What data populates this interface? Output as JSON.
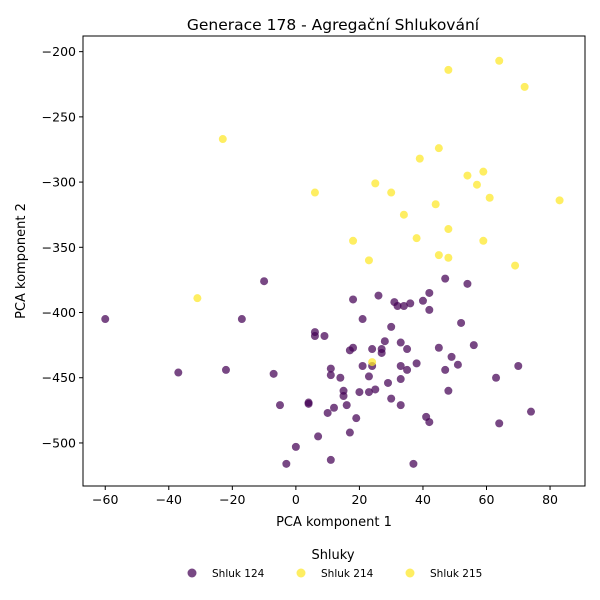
{
  "chart_data": {
    "type": "scatter",
    "title": "Generace 178 - Agregační Shlukování",
    "xlabel": "PCA komponent 1",
    "ylabel": "PCA komponent 2",
    "xlim": [
      -67,
      91
    ],
    "ylim": [
      -533,
      -188
    ],
    "xticks": [
      -60,
      -40,
      -20,
      0,
      20,
      40,
      60,
      80
    ],
    "yticks": [
      -200,
      -250,
      -300,
      -350,
      -400,
      -450,
      -500
    ],
    "grid": false,
    "legend": {
      "title": "Shluky",
      "placement": "bottom-center",
      "entries": [
        "Shluk 124",
        "Shluk 214",
        "Shluk 215"
      ]
    },
    "series": [
      {
        "name": "Shluk 124",
        "color": "#440154",
        "points": [
          [
            -60,
            -405
          ],
          [
            -37,
            -446
          ],
          [
            -22,
            -444
          ],
          [
            -17,
            -405
          ],
          [
            -10,
            -376
          ],
          [
            -7,
            -447
          ],
          [
            -5,
            -471
          ],
          [
            -3,
            -516
          ],
          [
            0,
            -503
          ],
          [
            4,
            -469
          ],
          [
            4,
            -470
          ],
          [
            6,
            -415
          ],
          [
            6,
            -418
          ],
          [
            7,
            -495
          ],
          [
            9,
            -418
          ],
          [
            10,
            -477
          ],
          [
            11,
            -513
          ],
          [
            11,
            -443
          ],
          [
            11,
            -448
          ],
          [
            12,
            -473
          ],
          [
            14,
            -450
          ],
          [
            15,
            -464
          ],
          [
            15,
            -460
          ],
          [
            16,
            -471
          ],
          [
            17,
            -492
          ],
          [
            17,
            -429
          ],
          [
            18,
            -390
          ],
          [
            18,
            -427
          ],
          [
            19,
            -481
          ],
          [
            20,
            -461
          ],
          [
            21,
            -441
          ],
          [
            21,
            -405
          ],
          [
            23,
            -461
          ],
          [
            23,
            -449
          ],
          [
            24,
            -428
          ],
          [
            24,
            -441
          ],
          [
            25,
            -459
          ],
          [
            26,
            -387
          ],
          [
            27,
            -428
          ],
          [
            27,
            -431
          ],
          [
            28,
            -422
          ],
          [
            29,
            -454
          ],
          [
            30,
            -466
          ],
          [
            30,
            -411
          ],
          [
            31,
            -392
          ],
          [
            32,
            -395
          ],
          [
            33,
            -451
          ],
          [
            33,
            -441
          ],
          [
            33,
            -423
          ],
          [
            33,
            -471
          ],
          [
            34,
            -395
          ],
          [
            35,
            -428
          ],
          [
            35,
            -444
          ],
          [
            36,
            -393
          ],
          [
            37,
            -516
          ],
          [
            38,
            -439
          ],
          [
            40,
            -391
          ],
          [
            41,
            -480
          ],
          [
            42,
            -484
          ],
          [
            42,
            -385
          ],
          [
            42,
            -398
          ],
          [
            45,
            -427
          ],
          [
            47,
            -374
          ],
          [
            47,
            -444
          ],
          [
            48,
            -460
          ],
          [
            49,
            -434
          ],
          [
            51,
            -440
          ],
          [
            52,
            -408
          ],
          [
            54,
            -378
          ],
          [
            56,
            -425
          ],
          [
            63,
            -450
          ],
          [
            64,
            -485
          ],
          [
            70,
            -441
          ],
          [
            74,
            -476
          ]
        ]
      },
      {
        "name": "Shluk 214",
        "color": "#FDE725",
        "points": [
          [
            24,
            -438
          ]
        ]
      },
      {
        "name": "Shluk 215",
        "color": "#FDE725",
        "points": [
          [
            -31,
            -389
          ],
          [
            -23,
            -267
          ],
          [
            6,
            -308
          ],
          [
            18,
            -345
          ],
          [
            23,
            -360
          ],
          [
            25,
            -301
          ],
          [
            30,
            -308
          ],
          [
            34,
            -325
          ],
          [
            38,
            -343
          ],
          [
            39,
            -282
          ],
          [
            44,
            -317
          ],
          [
            45,
            -274
          ],
          [
            45,
            -356
          ],
          [
            48,
            -214
          ],
          [
            48,
            -358
          ],
          [
            48,
            -336
          ],
          [
            54,
            -295
          ],
          [
            57,
            -302
          ],
          [
            59,
            -292
          ],
          [
            59,
            -345
          ],
          [
            61,
            -312
          ],
          [
            64,
            -207
          ],
          [
            69,
            -364
          ],
          [
            72,
            -227
          ],
          [
            83,
            -314
          ]
        ]
      }
    ]
  }
}
